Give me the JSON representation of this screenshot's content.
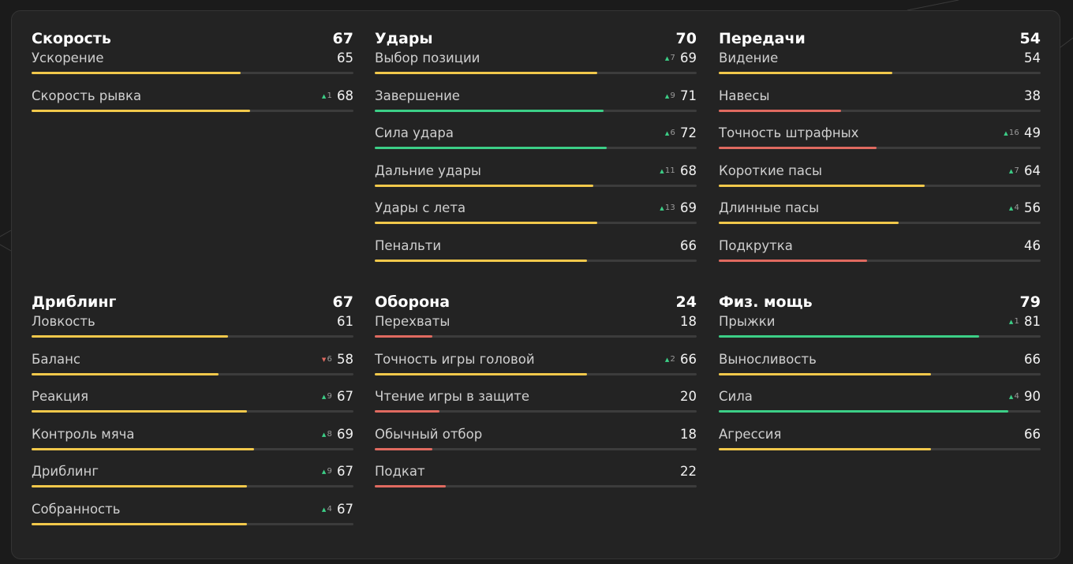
{
  "colors": {
    "good": "#3ccf87",
    "average": "#f1c84b",
    "poor": "#e06a60",
    "delta_up": "#3ccf87",
    "delta_down": "#e06a60"
  },
  "groups": [
    {
      "title": "Скорость",
      "value": "67",
      "stats": [
        {
          "label": "Ускорение",
          "value": "65",
          "delta": ""
        },
        {
          "label": "Скорость рывка",
          "value": "68",
          "delta": "1"
        }
      ]
    },
    {
      "title": "Удары",
      "value": "70",
      "stats": [
        {
          "label": "Выбор позиции",
          "value": "69",
          "delta": "7"
        },
        {
          "label": "Завершение",
          "value": "71",
          "delta": "9"
        },
        {
          "label": "Сила удара",
          "value": "72",
          "delta": "6"
        },
        {
          "label": "Дальние удары",
          "value": "68",
          "delta": "11"
        },
        {
          "label": "Удары с лета",
          "value": "69",
          "delta": "13"
        },
        {
          "label": "Пенальти",
          "value": "66",
          "delta": ""
        }
      ]
    },
    {
      "title": "Передачи",
      "value": "54",
      "stats": [
        {
          "label": "Видение",
          "value": "54",
          "delta": ""
        },
        {
          "label": "Навесы",
          "value": "38",
          "delta": ""
        },
        {
          "label": "Точность штрафных",
          "value": "49",
          "delta": "16"
        },
        {
          "label": "Короткие пасы",
          "value": "64",
          "delta": "7"
        },
        {
          "label": "Длинные пасы",
          "value": "56",
          "delta": "4"
        },
        {
          "label": "Подкрутка",
          "value": "46",
          "delta": ""
        }
      ]
    },
    {
      "title": "Дриблинг",
      "value": "67",
      "stats": [
        {
          "label": "Ловкость",
          "value": "61",
          "delta": ""
        },
        {
          "label": "Баланс",
          "value": "58",
          "delta": "6",
          "delta_dir": "down"
        },
        {
          "label": "Реакция",
          "value": "67",
          "delta": "9"
        },
        {
          "label": "Контроль мяча",
          "value": "69",
          "delta": "8"
        },
        {
          "label": "Дриблинг",
          "value": "67",
          "delta": "9"
        },
        {
          "label": "Собранность",
          "value": "67",
          "delta": "4"
        }
      ]
    },
    {
      "title": "Оборона",
      "value": "24",
      "stats": [
        {
          "label": "Перехваты",
          "value": "18",
          "delta": ""
        },
        {
          "label": "Точность игры головой",
          "value": "66",
          "delta": "2"
        },
        {
          "label": "Чтение игры в защите",
          "value": "20",
          "delta": ""
        },
        {
          "label": "Обычный отбор",
          "value": "18",
          "delta": ""
        },
        {
          "label": "Подкат",
          "value": "22",
          "delta": ""
        }
      ]
    },
    {
      "title": "Физ. мощь",
      "value": "79",
      "stats": [
        {
          "label": "Прыжки",
          "value": "81",
          "delta": "1"
        },
        {
          "label": "Выносливость",
          "value": "66",
          "delta": ""
        },
        {
          "label": "Сила",
          "value": "90",
          "delta": "4"
        },
        {
          "label": "Агрессия",
          "value": "66",
          "delta": ""
        }
      ]
    }
  ]
}
